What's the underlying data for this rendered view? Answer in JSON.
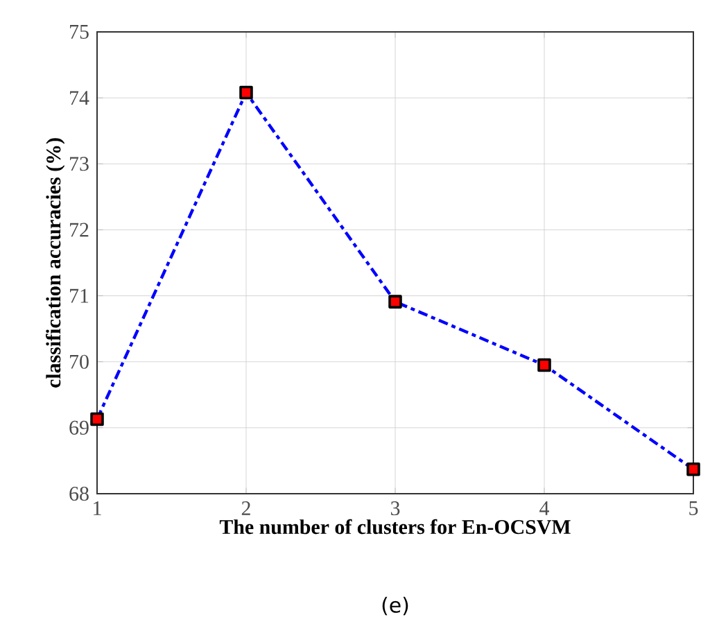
{
  "chart_data": {
    "type": "line",
    "xlabel": "The number of clusters for En-OCSVM",
    "ylabel": "classification accuracies (%)",
    "x": [
      1,
      2,
      3,
      4,
      5
    ],
    "series": [
      {
        "color": "#0000ff",
        "values": [
          69.13,
          74.08,
          70.91,
          69.95,
          68.37
        ]
      }
    ],
    "xlim": [
      1,
      5
    ],
    "xticks": [
      1,
      2,
      3,
      4,
      5
    ],
    "ylim": [
      68,
      75
    ],
    "yticks": [
      68,
      69,
      70,
      71,
      72,
      73,
      74,
      75
    ],
    "grid": true,
    "marker": "square",
    "line_style": "dashed",
    "annotations": [
      "(e)"
    ]
  }
}
